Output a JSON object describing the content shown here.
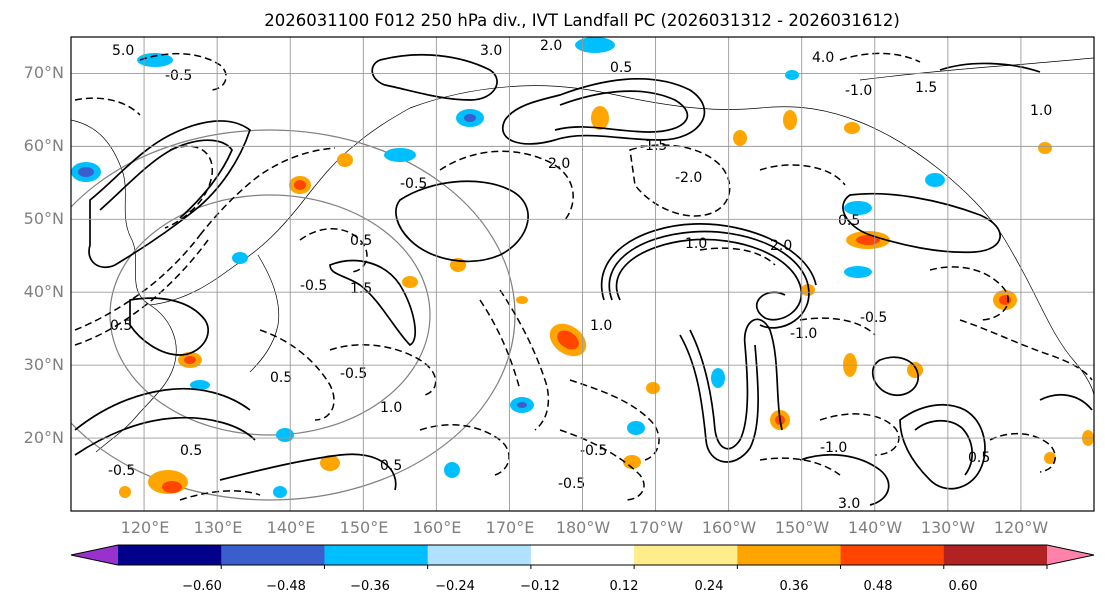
{
  "figure": {
    "title": "2026031100 F012 250 hPa div., IVT Landfall PC (2026031312 - 2026031612)"
  },
  "map": {
    "lat_range": [
      10,
      75
    ],
    "lon_range": [
      110,
      250
    ],
    "lat_ticks": [
      "70°N",
      "60°N",
      "50°N",
      "40°N",
      "30°N",
      "20°N"
    ],
    "lat_tick_values": [
      70,
      60,
      50,
      40,
      30,
      20
    ],
    "lon_ticks": [
      "120°E",
      "130°E",
      "140°E",
      "150°E",
      "160°E",
      "170°E",
      "180°W",
      "170°W",
      "160°W",
      "150°W",
      "140°W",
      "130°W",
      "120°W"
    ],
    "lon_tick_values": [
      120,
      130,
      140,
      150,
      160,
      170,
      180,
      190,
      200,
      210,
      220,
      230,
      240
    ],
    "gridlines": true,
    "contour_labels": [
      "5.0",
      "3.0",
      "2.0",
      "-0.5",
      "0.5",
      "1.0",
      "1.5",
      "4.0",
      "-1.0",
      "-1.5",
      "-2.0",
      "2.0",
      "-0.5",
      "0.5",
      "1.0",
      "0.5",
      "-0.5",
      "1.5",
      "1.0",
      "-0.5",
      "0.5",
      "-1.0",
      "2.0",
      "0.5",
      "-0.5",
      "0.5",
      "-0.5",
      "0.5",
      "-0.5",
      "-0.5",
      "1.0",
      "-1.0",
      "0.5",
      "3.0"
    ]
  },
  "colorbar": {
    "ticks": [
      "−0.60",
      "−0.48",
      "−0.36",
      "−0.24",
      "−0.12",
      "0.12",
      "0.24",
      "0.36",
      "0.48",
      "0.60"
    ],
    "colors": [
      "#9932cc",
      "#00008b",
      "#3a5fcd",
      "#00bfff",
      "#b0e2ff",
      "#ffffff",
      "#ffec8b",
      "#ffa500",
      "#ff4500",
      "#b22222",
      "#ff82ab"
    ]
  }
}
